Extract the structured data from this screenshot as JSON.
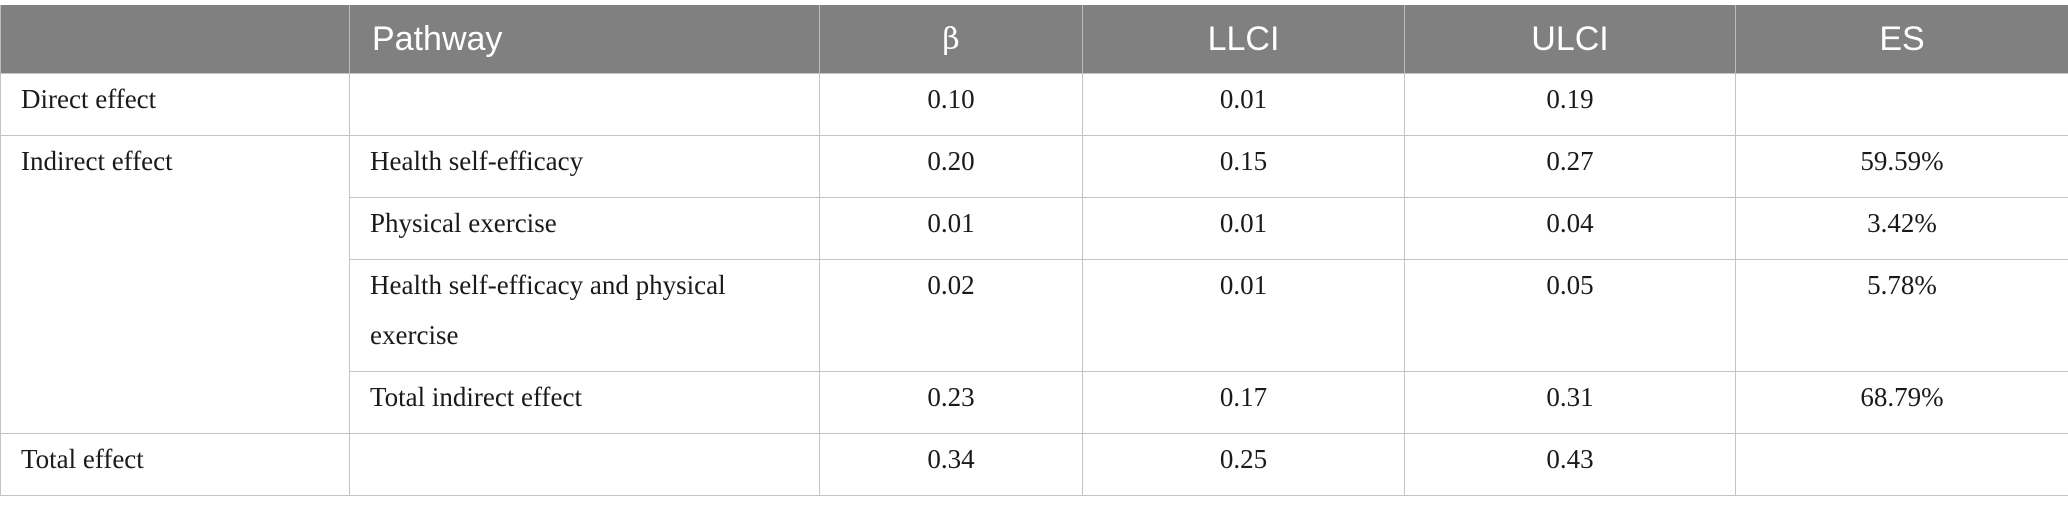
{
  "table": {
    "headers": [
      "",
      "Pathway",
      "β",
      "LLCI",
      "ULCI",
      "ES"
    ],
    "rows": [
      {
        "label": "Direct effect",
        "pathway": "",
        "beta": "0.10",
        "llci": "0.01",
        "ulci": "0.19",
        "es": ""
      },
      {
        "label": "Indirect effect",
        "pathway": "Health self-efficacy",
        "beta": "0.20",
        "llci": "0.15",
        "ulci": "0.27",
        "es": "59.59%"
      },
      {
        "label": "",
        "pathway": "Physical exercise",
        "beta": "0.01",
        "llci": "0.01",
        "ulci": "0.04",
        "es": "3.42%"
      },
      {
        "label": "",
        "pathway": "Health self-efficacy and physical exercise",
        "beta": "0.02",
        "llci": "0.01",
        "ulci": "0.05",
        "es": "5.78%"
      },
      {
        "label": "",
        "pathway": "Total indirect effect",
        "beta": "0.23",
        "llci": "0.17",
        "ulci": "0.31",
        "es": "68.79%"
      },
      {
        "label": "Total effect",
        "pathway": "",
        "beta": "0.34",
        "llci": "0.25",
        "ulci": "0.43",
        "es": ""
      }
    ]
  }
}
